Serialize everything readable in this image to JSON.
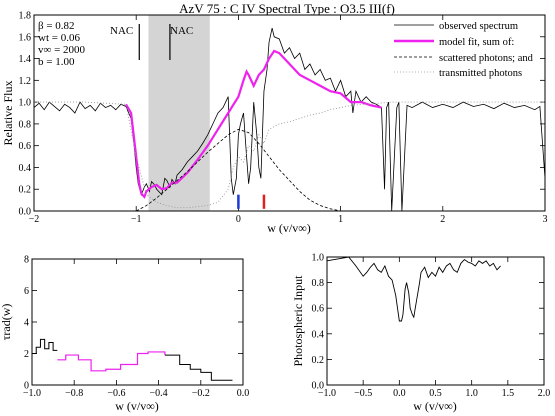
{
  "chart_data": [
    {
      "type": "line",
      "title": "AzV 75 : C IV     Spectral Type : O3.5 III(f)",
      "xlabel": "w (v/v∞)",
      "ylabel": "Relative Flux",
      "xlim": [
        -2,
        3
      ],
      "ylim": [
        0,
        1.8
      ],
      "xticks": [
        -2,
        -1,
        0,
        1,
        2,
        3
      ],
      "yticks": [
        0.0,
        0.2,
        0.4,
        0.6,
        0.8,
        1.0,
        1.2,
        1.4,
        1.6,
        1.8
      ],
      "params": [
        {
          "label": "β  = 0.82"
        },
        {
          "label": "wt = 0.06"
        },
        {
          "label": "v∞ = 2000"
        },
        {
          "label": "b  = 1.00"
        }
      ],
      "nac_label": "NAC",
      "nac_shade": [
        -0.88,
        -0.28
      ],
      "nac_marks": [
        -0.97,
        -0.67
      ],
      "blue_marker": 0.0,
      "red_marker": 0.25,
      "legend_position": "top-right",
      "series": [
        {
          "name": "observed spectrum",
          "color": "#000000",
          "style": "solid",
          "x": [
            -2.0,
            -1.95,
            -1.9,
            -1.85,
            -1.8,
            -1.75,
            -1.7,
            -1.65,
            -1.6,
            -1.55,
            -1.5,
            -1.45,
            -1.4,
            -1.35,
            -1.3,
            -1.25,
            -1.2,
            -1.15,
            -1.1,
            -1.05,
            -1.02,
            -1.0,
            -0.98,
            -0.95,
            -0.92,
            -0.9,
            -0.87,
            -0.85,
            -0.82,
            -0.8,
            -0.75,
            -0.72,
            -0.7,
            -0.67,
            -0.65,
            -0.62,
            -0.6,
            -0.55,
            -0.5,
            -0.45,
            -0.4,
            -0.35,
            -0.3,
            -0.25,
            -0.2,
            -0.15,
            -0.1,
            -0.07,
            -0.05,
            -0.02,
            0.0,
            0.02,
            0.05,
            0.08,
            0.1,
            0.12,
            0.15,
            0.18,
            0.2,
            0.22,
            0.25,
            0.28,
            0.3,
            0.33,
            0.35,
            0.4,
            0.45,
            0.5,
            0.55,
            0.6,
            0.65,
            0.7,
            0.75,
            0.8,
            0.85,
            0.9,
            0.95,
            1.0,
            1.05,
            1.1,
            1.12,
            1.15,
            1.2,
            1.25,
            1.3,
            1.35,
            1.4,
            1.43,
            1.45,
            1.47,
            1.5,
            1.55,
            1.57,
            1.6,
            1.65,
            1.7,
            1.8,
            1.9,
            2.0,
            2.1,
            2.2,
            2.3,
            2.4,
            2.5,
            2.6,
            2.7,
            2.8,
            2.9,
            2.95,
            3.0
          ],
          "y": [
            0.95,
            0.99,
            0.93,
            1.0,
            0.96,
            0.92,
            0.98,
            0.95,
            0.9,
            1.0,
            0.94,
            0.97,
            0.92,
            0.99,
            0.95,
            0.97,
            0.93,
            0.98,
            0.96,
            0.85,
            0.6,
            0.4,
            0.25,
            0.15,
            0.22,
            0.25,
            0.18,
            0.27,
            0.24,
            0.2,
            0.15,
            0.3,
            0.28,
            0.22,
            0.29,
            0.25,
            0.33,
            0.38,
            0.45,
            0.5,
            0.55,
            0.62,
            0.7,
            0.8,
            0.9,
            0.95,
            1.05,
            0.3,
            0.15,
            0.3,
            0.7,
            0.8,
            0.9,
            0.5,
            0.25,
            0.4,
            1.0,
            0.7,
            0.4,
            0.3,
            1.1,
            1.3,
            1.55,
            1.68,
            1.6,
            1.58,
            1.45,
            1.5,
            1.4,
            1.45,
            1.3,
            1.35,
            1.25,
            1.3,
            1.2,
            1.22,
            1.1,
            1.2,
            1.05,
            1.1,
            0.9,
            1.1,
            1.0,
            1.05,
            1.0,
            0.98,
            0.95,
            0.2,
            0.95,
            1.0,
            0.0,
            0.95,
            1.0,
            0.0,
            0.97,
            0.95,
            1.0,
            0.95,
            0.98,
            0.95,
            1.0,
            0.96,
            0.98,
            0.94,
            0.99,
            0.95,
            0.97,
            0.93,
            0.96,
            0.3
          ]
        },
        {
          "name": "model fit, sum of:",
          "color": "#ee22ee",
          "style": "solid",
          "x": [
            -1.1,
            -1.05,
            -1.0,
            -0.97,
            -0.95,
            -0.92,
            -0.9,
            -0.85,
            -0.8,
            -0.75,
            -0.7,
            -0.65,
            -0.6,
            -0.5,
            -0.4,
            -0.3,
            -0.2,
            -0.1,
            0.0,
            0.05,
            0.08,
            0.1,
            0.15,
            0.2,
            0.25,
            0.3,
            0.35,
            0.4,
            0.5,
            0.6,
            0.7,
            0.8,
            0.9,
            1.0,
            1.1,
            1.2,
            1.3,
            1.4
          ],
          "y": [
            0.98,
            0.9,
            0.5,
            0.25,
            0.16,
            0.13,
            0.18,
            0.22,
            0.24,
            0.2,
            0.21,
            0.26,
            0.26,
            0.35,
            0.47,
            0.6,
            0.75,
            0.9,
            1.05,
            1.2,
            1.28,
            1.25,
            1.15,
            1.25,
            1.3,
            1.4,
            1.47,
            1.45,
            1.35,
            1.25,
            1.2,
            1.15,
            1.1,
            1.08,
            1.0,
            1.0,
            0.97,
            0.95
          ]
        },
        {
          "name": "scattered photons; and",
          "color": "#000000",
          "style": "dashed",
          "x": [
            -1.0,
            -0.9,
            -0.8,
            -0.7,
            -0.6,
            -0.5,
            -0.4,
            -0.3,
            -0.2,
            -0.1,
            0.0,
            0.1,
            0.2,
            0.3,
            0.4,
            0.5,
            0.6,
            0.7,
            0.8,
            0.9,
            1.0
          ],
          "y": [
            0.0,
            0.05,
            0.12,
            0.2,
            0.28,
            0.36,
            0.45,
            0.54,
            0.62,
            0.7,
            0.75,
            0.72,
            0.62,
            0.5,
            0.38,
            0.28,
            0.18,
            0.1,
            0.05,
            0.02,
            0.0
          ]
        },
        {
          "name": "transmitted photons",
          "color": "#999999",
          "style": "dotted",
          "x": [
            -2.0,
            -1.5,
            -1.1,
            -1.0,
            -0.9,
            -0.8,
            -0.7,
            -0.6,
            -0.5,
            -0.4,
            -0.3,
            -0.2,
            -0.1,
            -0.05,
            0.0,
            0.05,
            0.1,
            0.15,
            0.2,
            0.25,
            0.3,
            0.4,
            0.5,
            0.6,
            0.7,
            0.8,
            0.9,
            1.0,
            1.1,
            1.5,
            2.0,
            3.0
          ],
          "y": [
            1.0,
            1.0,
            0.98,
            0.5,
            0.15,
            0.08,
            0.05,
            0.03,
            0.03,
            0.04,
            0.05,
            0.08,
            0.2,
            0.4,
            0.5,
            0.45,
            0.6,
            0.55,
            0.7,
            0.62,
            0.75,
            0.8,
            0.82,
            0.85,
            0.88,
            0.9,
            0.93,
            0.95,
            0.97,
            1.0,
            1.0,
            1.0
          ]
        }
      ]
    },
    {
      "type": "line",
      "step": true,
      "xlabel": "w (v/v∞)",
      "ylabel": "τrad(w)",
      "xlim": [
        -1.0,
        0.0
      ],
      "ylim": [
        0,
        8
      ],
      "xticks": [
        -1.0,
        -0.8,
        -0.6,
        -0.4,
        -0.2,
        0.0
      ],
      "yticks": [
        0,
        2,
        4,
        6,
        8
      ],
      "series": [
        {
          "color": "#000000",
          "x": [
            -1.0,
            -0.98,
            -0.96,
            -0.94,
            -0.92,
            -0.9,
            -0.88
          ],
          "y": [
            2.0,
            2.4,
            2.9,
            2.3,
            2.7,
            2.2,
            2.2
          ]
        },
        {
          "color": "#ee22ee",
          "x": [
            -0.88,
            -0.84,
            -0.78,
            -0.72,
            -0.65,
            -0.58,
            -0.5,
            -0.45,
            -0.37
          ],
          "y": [
            1.6,
            1.9,
            1.6,
            0.9,
            1.0,
            1.3,
            2.0,
            2.1,
            1.9
          ]
        },
        {
          "color": "#000000",
          "x": [
            -0.37,
            -0.3,
            -0.25,
            -0.2,
            -0.15,
            -0.05
          ],
          "y": [
            1.9,
            1.3,
            1.0,
            0.8,
            0.3,
            0.3
          ]
        }
      ]
    },
    {
      "type": "line",
      "xlabel": "w (v/v∞)",
      "ylabel": "Photospheric Input",
      "xlim": [
        -1.0,
        2.0
      ],
      "ylim": [
        0,
        1
      ],
      "xticks": [
        -1.0,
        -0.5,
        0.0,
        0.5,
        1.0,
        1.5,
        2.0
      ],
      "yticks": [
        0.0,
        0.2,
        0.4,
        0.6,
        0.8,
        1.0
      ],
      "series": [
        {
          "color": "#000000",
          "x": [
            -1.0,
            -0.9,
            -0.8,
            -0.7,
            -0.6,
            -0.5,
            -0.45,
            -0.4,
            -0.35,
            -0.3,
            -0.25,
            -0.2,
            -0.15,
            -0.1,
            -0.05,
            0.0,
            0.03,
            0.05,
            0.08,
            0.1,
            0.13,
            0.15,
            0.18,
            0.2,
            0.22,
            0.25,
            0.28,
            0.3,
            0.35,
            0.4,
            0.45,
            0.5,
            0.55,
            0.6,
            0.65,
            0.7,
            0.75,
            0.8,
            0.85,
            0.9,
            0.95,
            1.0,
            1.05,
            1.1,
            1.15,
            1.2,
            1.25,
            1.3,
            1.35,
            1.4
          ],
          "y": [
            0.97,
            0.98,
            0.99,
            1.0,
            0.93,
            0.85,
            0.88,
            0.92,
            0.95,
            0.9,
            0.88,
            0.93,
            0.85,
            0.82,
            0.7,
            0.5,
            0.5,
            0.55,
            0.75,
            0.8,
            0.72,
            0.6,
            0.55,
            0.53,
            0.6,
            0.7,
            0.8,
            0.88,
            0.92,
            0.84,
            0.88,
            0.85,
            0.92,
            0.88,
            0.93,
            0.95,
            0.9,
            0.88,
            0.95,
            0.98,
            0.96,
            0.95,
            0.93,
            0.97,
            0.95,
            0.97,
            0.93,
            0.95,
            0.9,
            0.93
          ]
        }
      ]
    }
  ]
}
